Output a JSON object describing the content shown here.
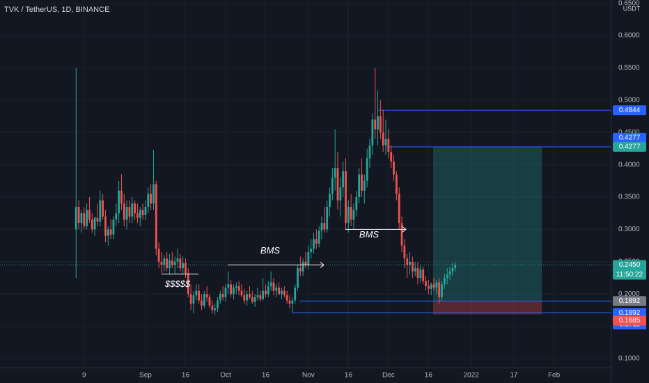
{
  "chart_data": {
    "type": "candlestick",
    "title": "TVK / TetherUS, 1D, BINANCE",
    "currency": "USDT",
    "categories": [
      null,
      null,
      null,
      null,
      null,
      null,
      null,
      null,
      null,
      null,
      null,
      null,
      null,
      null,
      null,
      null,
      null,
      null,
      null,
      null,
      null,
      null,
      null,
      null,
      null,
      null,
      null,
      null,
      null,
      null,
      null,
      "9",
      null,
      null,
      null,
      null,
      null,
      null,
      null,
      null,
      null,
      null,
      null,
      null,
      null,
      null,
      null,
      null,
      null,
      null,
      null,
      null,
      null,
      null,
      "Sep",
      null,
      null,
      null,
      null,
      null,
      null,
      null,
      null,
      null,
      null,
      null,
      null,
      null,
      null,
      "16",
      null,
      null,
      null,
      null,
      null,
      null,
      null,
      null,
      null,
      null,
      null,
      null,
      null,
      null,
      "Oct",
      null,
      null,
      null,
      null,
      null,
      null,
      null,
      null,
      null,
      null,
      null,
      null,
      null,
      null,
      "16",
      null,
      null,
      null,
      null,
      null,
      null,
      null,
      null,
      null,
      null,
      null,
      null,
      null,
      null,
      null,
      "Nov",
      null,
      null,
      null,
      null,
      null,
      null,
      null,
      null,
      null,
      null,
      null,
      null,
      null,
      null,
      "16",
      null,
      null,
      null,
      null,
      null,
      null,
      null,
      null,
      null,
      null,
      null,
      null,
      null,
      null,
      "Dec",
      null,
      null,
      null,
      null,
      null,
      null,
      null,
      null,
      null,
      null,
      null,
      null,
      null,
      null,
      "16",
      null,
      null,
      null,
      null,
      null,
      null,
      null,
      null,
      null,
      null,
      null,
      null,
      null,
      null,
      null,
      "2022",
      null,
      null,
      null,
      null,
      null,
      null,
      null,
      null,
      null,
      null,
      null,
      null,
      null,
      null,
      null,
      "17",
      null,
      null,
      null,
      null,
      null,
      null,
      null,
      null,
      null,
      null,
      null,
      null,
      null,
      null,
      "Feb",
      null,
      null,
      null,
      null,
      null,
      null,
      null,
      null,
      null,
      null,
      null,
      null,
      null,
      null,
      null,
      null,
      null,
      null,
      null,
      null,
      null
    ],
    "ohlc": [
      null,
      null,
      null,
      null,
      null,
      null,
      null,
      null,
      null,
      null,
      null,
      null,
      null,
      null,
      null,
      null,
      null,
      null,
      null,
      null,
      null,
      null,
      null,
      null,
      null,
      null,
      null,
      null,
      [
        0.3,
        0.55,
        0.225,
        0.335
      ],
      [
        0.335,
        0.345,
        0.3,
        0.31
      ],
      [
        0.31,
        0.33,
        0.295,
        0.325
      ],
      [
        0.325,
        0.335,
        0.3,
        0.305
      ],
      [
        0.305,
        0.34,
        0.3,
        0.33
      ],
      [
        0.33,
        0.35,
        0.31,
        0.315
      ],
      [
        0.315,
        0.325,
        0.295,
        0.3
      ],
      [
        0.3,
        0.32,
        0.29,
        0.318
      ],
      [
        0.318,
        0.34,
        0.305,
        0.312
      ],
      [
        0.312,
        0.36,
        0.305,
        0.345
      ],
      [
        0.345,
        0.355,
        0.315,
        0.32
      ],
      [
        0.32,
        0.33,
        0.28,
        0.29
      ],
      [
        0.29,
        0.305,
        0.275,
        0.3
      ],
      [
        0.3,
        0.315,
        0.285,
        0.292
      ],
      [
        0.292,
        0.32,
        0.285,
        0.315
      ],
      [
        0.315,
        0.34,
        0.305,
        0.325
      ],
      [
        0.325,
        0.375,
        0.31,
        0.36
      ],
      [
        0.36,
        0.385,
        0.33,
        0.34
      ],
      [
        0.34,
        0.355,
        0.305,
        0.315
      ],
      [
        0.315,
        0.345,
        0.3,
        0.335
      ],
      [
        0.335,
        0.345,
        0.31,
        0.32
      ],
      [
        0.32,
        0.35,
        0.31,
        0.34
      ],
      [
        0.34,
        0.345,
        0.315,
        0.325
      ],
      [
        0.325,
        0.34,
        0.31,
        0.318
      ],
      [
        0.318,
        0.335,
        0.305,
        0.33
      ],
      [
        0.33,
        0.34,
        0.315,
        0.322
      ],
      [
        0.322,
        0.345,
        0.315,
        0.335
      ],
      [
        0.335,
        0.365,
        0.325,
        0.355
      ],
      [
        0.355,
        0.37,
        0.33,
        0.34
      ],
      [
        0.34,
        0.423,
        0.33,
        0.37
      ],
      [
        0.37,
        0.375,
        0.26,
        0.27
      ],
      [
        0.27,
        0.28,
        0.24,
        0.25
      ],
      [
        0.25,
        0.265,
        0.232,
        0.245
      ],
      [
        0.245,
        0.26,
        0.235,
        0.255
      ],
      [
        0.255,
        0.265,
        0.235,
        0.24
      ],
      [
        0.24,
        0.262,
        0.23,
        0.252
      ],
      [
        0.252,
        0.265,
        0.24,
        0.245
      ],
      [
        0.245,
        0.258,
        0.232,
        0.25
      ],
      [
        0.25,
        0.27,
        0.24,
        0.255
      ],
      [
        0.255,
        0.262,
        0.235,
        0.24
      ],
      [
        0.24,
        0.258,
        0.23,
        0.248
      ],
      [
        0.248,
        0.255,
        0.225,
        0.232
      ],
      [
        0.232,
        0.24,
        0.195,
        0.2
      ],
      [
        0.2,
        0.215,
        0.175,
        0.185
      ],
      [
        0.185,
        0.205,
        0.17,
        0.198
      ],
      [
        0.198,
        0.215,
        0.19,
        0.205
      ],
      [
        0.205,
        0.215,
        0.185,
        0.19
      ],
      [
        0.19,
        0.2,
        0.175,
        0.182
      ],
      [
        0.182,
        0.205,
        0.178,
        0.2
      ],
      [
        0.2,
        0.212,
        0.188,
        0.195
      ],
      [
        0.195,
        0.2,
        0.178,
        0.182
      ],
      [
        0.182,
        0.19,
        0.17,
        0.175
      ],
      [
        0.175,
        0.185,
        0.168,
        0.178
      ],
      [
        0.178,
        0.195,
        0.172,
        0.19
      ],
      [
        0.19,
        0.205,
        0.185,
        0.2
      ],
      [
        0.2,
        0.212,
        0.19,
        0.195
      ],
      [
        0.195,
        0.215,
        0.188,
        0.21
      ],
      [
        0.21,
        0.235,
        0.2,
        0.215
      ],
      [
        0.215,
        0.222,
        0.195,
        0.2
      ],
      [
        0.2,
        0.215,
        0.192,
        0.21
      ],
      [
        0.21,
        0.218,
        0.2,
        0.212
      ],
      [
        0.212,
        0.22,
        0.198,
        0.205
      ],
      [
        0.205,
        0.215,
        0.195,
        0.198
      ],
      [
        0.198,
        0.208,
        0.185,
        0.19
      ],
      [
        0.19,
        0.205,
        0.182,
        0.2
      ],
      [
        0.2,
        0.212,
        0.192,
        0.195
      ],
      [
        0.195,
        0.205,
        0.185,
        0.188
      ],
      [
        0.188,
        0.2,
        0.18,
        0.195
      ],
      [
        0.195,
        0.21,
        0.19,
        0.198
      ],
      [
        0.198,
        0.205,
        0.188,
        0.192
      ],
      [
        0.192,
        0.225,
        0.19,
        0.205
      ],
      [
        0.205,
        0.215,
        0.195,
        0.2
      ],
      [
        0.2,
        0.22,
        0.195,
        0.212
      ],
      [
        0.212,
        0.235,
        0.205,
        0.218
      ],
      [
        0.218,
        0.225,
        0.198,
        0.205
      ],
      [
        0.205,
        0.215,
        0.195,
        0.21
      ],
      [
        0.21,
        0.218,
        0.198,
        0.2
      ],
      [
        0.2,
        0.21,
        0.192,
        0.205
      ],
      [
        0.205,
        0.212,
        0.195,
        0.198
      ],
      [
        0.198,
        0.205,
        0.185,
        0.19
      ],
      [
        0.19,
        0.198,
        0.178,
        0.185
      ],
      [
        0.185,
        0.195,
        0.171,
        0.19
      ],
      [
        0.19,
        0.215,
        0.185,
        0.21
      ],
      [
        0.21,
        0.245,
        0.205,
        0.24
      ],
      [
        0.24,
        0.258,
        0.228,
        0.235
      ],
      [
        0.235,
        0.255,
        0.228,
        0.25
      ],
      [
        0.25,
        0.265,
        0.24,
        0.245
      ],
      [
        0.245,
        0.275,
        0.238,
        0.265
      ],
      [
        0.265,
        0.285,
        0.255,
        0.27
      ],
      [
        0.27,
        0.295,
        0.262,
        0.285
      ],
      [
        0.285,
        0.3,
        0.27,
        0.278
      ],
      [
        0.278,
        0.305,
        0.272,
        0.298
      ],
      [
        0.298,
        0.32,
        0.285,
        0.31
      ],
      [
        0.31,
        0.335,
        0.295,
        0.3
      ],
      [
        0.3,
        0.345,
        0.295,
        0.335
      ],
      [
        0.335,
        0.365,
        0.32,
        0.355
      ],
      [
        0.355,
        0.395,
        0.345,
        0.38
      ],
      [
        0.38,
        0.455,
        0.36,
        0.395
      ],
      [
        0.395,
        0.42,
        0.33,
        0.345
      ],
      [
        0.345,
        0.38,
        0.32,
        0.365
      ],
      [
        0.365,
        0.405,
        0.35,
        0.39
      ],
      [
        0.39,
        0.41,
        0.3,
        0.31
      ],
      [
        0.31,
        0.345,
        0.295,
        0.335
      ],
      [
        0.335,
        0.355,
        0.305,
        0.315
      ],
      [
        0.315,
        0.34,
        0.3,
        0.33
      ],
      [
        0.33,
        0.36,
        0.32,
        0.35
      ],
      [
        0.35,
        0.395,
        0.34,
        0.385
      ],
      [
        0.385,
        0.41,
        0.35,
        0.36
      ],
      [
        0.36,
        0.385,
        0.34,
        0.375
      ],
      [
        0.375,
        0.425,
        0.365,
        0.41
      ],
      [
        0.41,
        0.44,
        0.395,
        0.43
      ],
      [
        0.43,
        0.48,
        0.415,
        0.47
      ],
      [
        0.47,
        0.55,
        0.44,
        0.455
      ],
      [
        0.455,
        0.515,
        0.43,
        0.475
      ],
      [
        0.475,
        0.5,
        0.44,
        0.45
      ],
      [
        0.45,
        0.485,
        0.42,
        0.43
      ],
      [
        0.43,
        0.47,
        0.415,
        0.44
      ],
      [
        0.44,
        0.455,
        0.41,
        0.42
      ],
      [
        0.42,
        0.43,
        0.395,
        0.405
      ],
      [
        0.405,
        0.415,
        0.375,
        0.385
      ],
      [
        0.385,
        0.39,
        0.345,
        0.355
      ],
      [
        0.355,
        0.365,
        0.3,
        0.31
      ],
      [
        0.31,
        0.32,
        0.265,
        0.275
      ],
      [
        0.275,
        0.285,
        0.24,
        0.255
      ],
      [
        0.255,
        0.262,
        0.225,
        0.245
      ],
      [
        0.245,
        0.265,
        0.23,
        0.25
      ],
      [
        0.25,
        0.258,
        0.225,
        0.235
      ],
      [
        0.235,
        0.25,
        0.228,
        0.24
      ],
      [
        0.24,
        0.25,
        0.215,
        0.225
      ],
      [
        0.225,
        0.245,
        0.218,
        0.238
      ],
      [
        0.238,
        0.242,
        0.215,
        0.22
      ],
      [
        0.22,
        0.228,
        0.205,
        0.212
      ],
      [
        0.212,
        0.222,
        0.2,
        0.208
      ],
      [
        0.208,
        0.218,
        0.198,
        0.215
      ],
      [
        0.215,
        0.225,
        0.205,
        0.21
      ],
      [
        0.21,
        0.222,
        0.2,
        0.218
      ],
      [
        0.218,
        0.225,
        0.185,
        0.195
      ],
      [
        0.195,
        0.22,
        0.19,
        0.215
      ],
      [
        0.215,
        0.232,
        0.208,
        0.225
      ],
      [
        0.225,
        0.24,
        0.215,
        0.23
      ],
      [
        0.23,
        0.242,
        0.222,
        0.235
      ],
      [
        0.235,
        0.248,
        0.228,
        0.24
      ],
      [
        0.24,
        0.25,
        0.235,
        0.245
      ],
      null,
      null,
      null,
      null,
      null,
      null,
      null,
      null,
      null,
      null,
      null,
      null,
      null,
      null,
      null,
      null,
      null,
      null,
      null,
      null,
      null,
      null,
      null,
      null,
      null,
      null,
      null,
      null,
      null,
      null,
      null,
      null,
      null,
      null,
      null,
      null,
      null,
      null,
      null,
      null,
      null,
      null,
      null,
      null,
      null,
      null,
      null,
      null,
      null,
      null,
      null,
      null,
      null,
      null,
      null,
      null,
      null,
      null
    ],
    "up_color": "#26a69a",
    "down_color": "#ef5350",
    "ylim": [
      0.086,
      0.655
    ],
    "yticks": [
      {
        "value": 0.1,
        "label": "0.1000"
      },
      {
        "value": 0.15,
        "label": "0.1500"
      },
      {
        "value": 0.2,
        "label": "0.2000"
      },
      {
        "value": 0.25,
        "label": "0.2500"
      },
      {
        "value": 0.3,
        "label": "0.3000"
      },
      {
        "value": 0.35,
        "label": "0.3500"
      },
      {
        "value": 0.4,
        "label": "0.4000"
      },
      {
        "value": 0.45,
        "label": "0.4500"
      },
      {
        "value": 0.5,
        "label": "0.5000"
      },
      {
        "value": 0.55,
        "label": "0.5500"
      },
      {
        "value": 0.6,
        "label": "0.6000"
      },
      {
        "value": 0.65,
        "label": "0.6500"
      }
    ],
    "grid": true,
    "last_price": {
      "value": 0.245,
      "label": "0.2450"
    },
    "countdown": "11:50:22",
    "levels": [
      0.4844,
      0.4277,
      0.1892,
      0.1711
    ],
    "level_color": "#2962ff",
    "position": {
      "target": 0.4277,
      "entry": 0.1892,
      "stop": 0.1685
    },
    "annotations": [
      {
        "text": "BMS",
        "value": 0.245
      },
      {
        "text": "BMS",
        "value": 0.3
      },
      {
        "text": "$$$$$",
        "value": 0.231
      }
    ]
  }
}
